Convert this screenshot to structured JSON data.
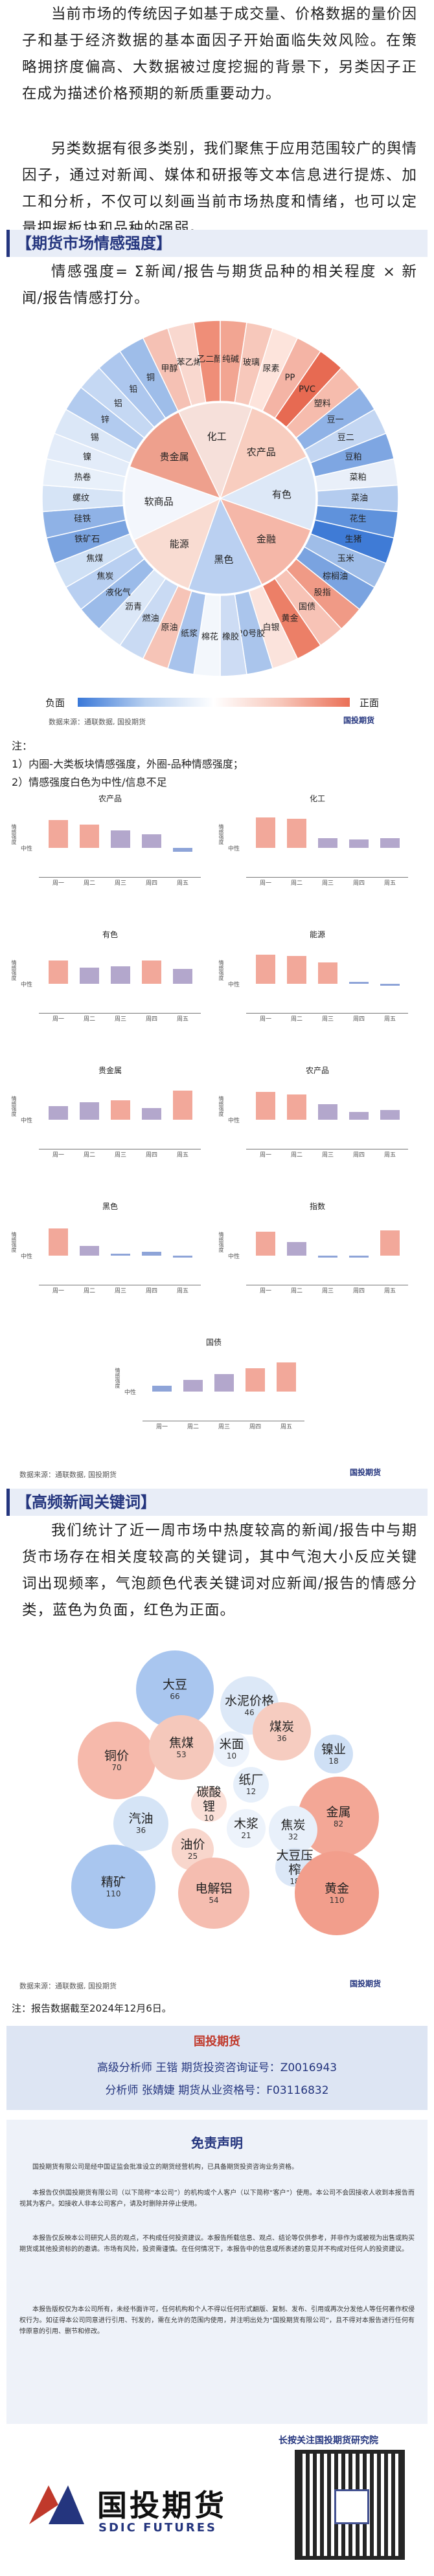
{
  "intro": {
    "p1": "当前市场的传统因子如基于成交量、价格数据的量价因子和基于经济数据的基本面因子开始面临失效风险。在策略拥挤度偏高、大数据被过度挖掘的背景下，另类因子正在成为描述价格预期的新质重要动力。",
    "p2": "另类数据有很多类别，我们聚焦于应用范围较广的舆情因子，通过对新闻、媒体和研报等文本信息进行提炼、加工和分析，不仅可以刻画当前市场热度和情绪，也可以定量把握板块和品种的强弱。"
  },
  "section1": {
    "title": "【期货市场情感强度】",
    "formula": "情感强度= Σ新闻/报告与期货品种的相关程度 × 新闻/报告情感打分。",
    "donut_inner": [
      "化工",
      "农产品",
      "有色",
      "金融",
      "黑色",
      "能源",
      "软商品",
      "贵金属"
    ],
    "donut_outer": [
      "甲醇",
      "苯乙烯",
      "乙二醇",
      "纯碱",
      "玻璃",
      "尿素",
      "PP",
      "PVC",
      "塑料",
      "豆一",
      "豆二",
      "豆粕",
      "菜粕",
      "菜油",
      "花生",
      "生猪",
      "玉米",
      "棕榈油",
      "股指",
      "国债",
      "黄金",
      "白银",
      "20号胶",
      "橡胶",
      "棉花",
      "纸浆",
      "原油",
      "燃油",
      "沥青",
      "液化气",
      "焦炭",
      "焦煤",
      "铁矿石",
      "硅铁",
      "螺纹",
      "热卷",
      "镍",
      "锡",
      "锌",
      "铝",
      "铅",
      "铜"
    ],
    "legend_neg": "负面",
    "legend_pos": "正面",
    "source": "数据来源：通联数据, 国投期货",
    "logo": "国投期货",
    "notes_head": "注：",
    "note1": "1）内圈-大类板块情感强度，外圈-品种情感强度；",
    "note2": "2）情感强度白色为中性/信息不足"
  },
  "mini_charts": [
    {
      "title": "农产品",
      "ylabel": "情感强度",
      "yticks": [
        "中性"
      ],
      "values": [
        0.72,
        0.6,
        0.45,
        0.35,
        -0.1
      ]
    },
    {
      "title": "化工",
      "ylabel": "情感强度",
      "yticks": [
        "中性"
      ],
      "values": [
        0.78,
        0.75,
        0.25,
        0.22,
        0.25
      ]
    },
    {
      "title": "有色",
      "ylabel": "情感强度",
      "yticks": [
        "中性"
      ],
      "values": [
        0.6,
        0.42,
        0.45,
        0.6,
        0.38
      ]
    },
    {
      "title": "能源",
      "ylabel": "情感强度",
      "yticks": [
        "中性"
      ],
      "values": [
        0.75,
        0.72,
        0.55,
        0.05,
        -0.05
      ]
    },
    {
      "title": "贵金属",
      "ylabel": "情感强度",
      "yticks": [
        "中性"
      ],
      "values": [
        0.35,
        0.45,
        0.5,
        0.3,
        0.75
      ]
    },
    {
      "title": "农产品",
      "ylabel": "情感强度",
      "yticks": [
        "中性"
      ],
      "values": [
        0.72,
        0.65,
        0.4,
        0.2,
        0.25
      ]
    },
    {
      "title": "黑色",
      "ylabel": "情感强度",
      "yticks": [
        "中性"
      ],
      "values": [
        0.7,
        0.25,
        0.05,
        0.1,
        -0.05
      ]
    },
    {
      "title": "指数",
      "ylabel": "情感强度",
      "yticks": [
        "中性"
      ],
      "values": [
        0.62,
        0.35,
        -0.05,
        -0.05,
        0.65
      ]
    },
    {
      "title": "国债",
      "ylabel": "情感强度",
      "yticks": [
        "中性"
      ],
      "values": [
        0.15,
        0.3,
        0.45,
        0.6,
        0.75
      ]
    }
  ],
  "mini_xticks": [
    "周一",
    "周二",
    "周三",
    "周四",
    "周五"
  ],
  "mini_source": "数据来源：通联数据, 国投期货",
  "section2": {
    "title": "【高频新闻关键词】",
    "body": "我们统计了近一周市场中热度较高的新闻/报告中与期货市场存在相关度较高的关键词，其中气泡大小反应关键词出现频率，气泡颜色代表关键词对应新闻/报告的情感分类，蓝色为负面，红色为正面。",
    "source": "数据来源：通联数据, 国投期货",
    "report_date": "注：报告数据截至2024年12月6日。"
  },
  "bubbles": [
    {
      "name": "大豆",
      "value": "66",
      "color": "#a9c6ef"
    },
    {
      "name": "水泥价格",
      "value": "46",
      "color": "#dce8f7"
    },
    {
      "name": "铜价",
      "value": "70",
      "color": "#f6b9ab"
    },
    {
      "name": "焦煤",
      "value": "53",
      "color": "#f5c8bb"
    },
    {
      "name": "米面",
      "value": "10",
      "color": "#ecf2fb"
    },
    {
      "name": "煤炭",
      "value": "36",
      "color": "#f6ccc0"
    },
    {
      "name": "镍业",
      "value": "18",
      "color": "#cfe0f5"
    },
    {
      "name": "汽油",
      "value": "36",
      "color": "#d5e4f6"
    },
    {
      "name": "碳酸锂",
      "value": "10",
      "color": "#fbe0d8"
    },
    {
      "name": "纸厂",
      "value": "12",
      "color": "#e6effa"
    },
    {
      "name": "金属",
      "value": "82",
      "color": "#f3a796"
    },
    {
      "name": "油价",
      "value": "25",
      "color": "#f8d6cc"
    },
    {
      "name": "木浆",
      "value": "21",
      "color": "#edf3fb"
    },
    {
      "name": "焦炭",
      "value": "32",
      "color": "#e8f0fa"
    },
    {
      "name": "大豆压榨",
      "value": "18",
      "color": "#dbe7f7"
    },
    {
      "name": "精矿",
      "value": "110",
      "color": "#a9c6ef"
    },
    {
      "name": "电解铝",
      "value": "54",
      "color": "#f5bdb0"
    },
    {
      "name": "黄金",
      "value": "110",
      "color": "#f29e8c"
    }
  ],
  "analysts": {
    "header": "国投期货",
    "line1": "高级分析师 王锴 期货投资咨询证号：Z0016943",
    "line2": "分析师 张婧婕 期货从业资格号：F03116832"
  },
  "disclaimer": {
    "title": "免责声明",
    "paras": [
      "国投期货有限公司是经中国证监会批准设立的期货经营机构，已具备期货投资咨询业务资格。",
      "本报告仅供国投期货有限公司（以下简称“本公司”）的机构或个人客户（以下简称“客户”）使用。本公司不会因接收人收到本报告而视其为客户。如接收人非本公司客户，请及时删除并停止使用。",
      "本报告仅反映本公司研究人员的观点，不构成任何投资建议。本报告所载信息、观点、结论等仅供参考，并非作为或被视为出售或购买期货或其他投资标的的邀请。市场有风险，投资需谨慎。在任何情况下，本报告中的信息或所表述的意见并不构成对任何人的投资建议。",
      "本报告版权仅为本公司所有，未经书面许可，任何机构和个人不得以任何形式翻版、复制、发布、引用或再次分发他人等任何著作权侵权行为。如征得本公司同意进行引用、刊发的，需在允许的范围内使用，并注明出处为“国投期货有限公司”，且不得对本报告进行任何有悖原意的引用、删节和修改。"
    ]
  },
  "bottom": {
    "follow": "长按关注国投期货研究院",
    "brand_cn": "国投期货",
    "brand_en": "SDIC FUTURES"
  }
}
